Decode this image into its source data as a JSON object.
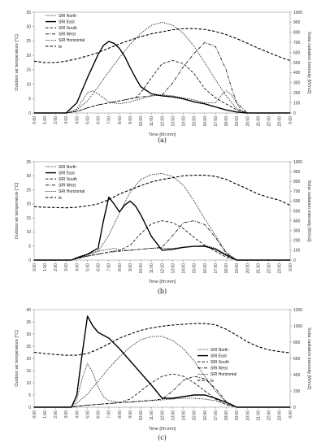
{
  "chart_data": [
    {
      "type": "line",
      "caption": "(a)",
      "xlabel": "Time [hh:mm]",
      "ylabel_left": "Outdoor air temperature  [°C]",
      "ylabel_right": "Solar radiation intensity [W/m2]",
      "ylim_left": [
        0,
        35
      ],
      "yticks_left": [
        0,
        5,
        10,
        15,
        20,
        25,
        30,
        35
      ],
      "ylim_right": [
        0,
        1000
      ],
      "yticks_right": [
        0,
        100,
        200,
        300,
        400,
        500,
        600,
        700,
        800,
        900,
        1000
      ],
      "x_ticks": [
        "0:00",
        "1:00",
        "2:00",
        "3:00",
        "4:00",
        "5:00",
        "6:00",
        "7:00",
        "8:00",
        "9:00",
        "10:00",
        "11:00",
        "12:00",
        "13:00",
        "14:00",
        "15:00",
        "16:00",
        "17:00",
        "18:00",
        "19:00",
        "20:00",
        "21:00",
        "22:00",
        "23:00",
        "0:00"
      ],
      "legend": [
        "SRI North",
        "SRI East",
        "SRI South",
        "SRI West",
        "SRI Horizontal",
        "te"
      ],
      "series": [
        {
          "name": "SRI North",
          "axis": "right",
          "style": "dotted",
          "x": [
            0,
            3,
            3.5,
            4,
            4.5,
            5,
            5.5,
            6,
            6.5,
            7,
            8,
            9,
            10,
            11,
            12,
            13,
            14,
            15,
            16,
            17,
            17.5,
            18,
            18.5,
            19,
            19.5,
            24
          ],
          "y": [
            0,
            0,
            10,
            40,
            120,
            200,
            220,
            190,
            150,
            110,
            90,
            110,
            140,
            170,
            180,
            170,
            150,
            130,
            100,
            100,
            170,
            220,
            180,
            100,
            0,
            0
          ]
        },
        {
          "name": "SRI East",
          "axis": "right",
          "style": "solid",
          "x": [
            0,
            3,
            4,
            5,
            6,
            6.5,
            7,
            7.5,
            8,
            8.5,
            9,
            9.5,
            10,
            11,
            12,
            13,
            14,
            15,
            16,
            17,
            18,
            19,
            20,
            24
          ],
          "y": [
            0,
            0,
            100,
            350,
            580,
            670,
            710,
            690,
            640,
            560,
            450,
            350,
            260,
            190,
            170,
            160,
            140,
            110,
            90,
            60,
            30,
            10,
            0,
            0
          ]
        },
        {
          "name": "SRI South",
          "axis": "right",
          "style": "dashed",
          "x": [
            0,
            3,
            4,
            5,
            6,
            7,
            8,
            9,
            9.5,
            10,
            11,
            12,
            13,
            14,
            15,
            16,
            17,
            18,
            19,
            20,
            24
          ],
          "y": [
            0,
            0,
            15,
            50,
            80,
            100,
            120,
            140,
            150,
            200,
            350,
            490,
            520,
            490,
            390,
            240,
            150,
            90,
            30,
            0,
            0
          ]
        },
        {
          "name": "SRI West",
          "axis": "right",
          "style": "dashdot",
          "x": [
            0,
            3,
            4,
            5,
            6,
            7,
            8,
            9,
            10,
            11,
            12,
            13,
            14,
            15,
            16,
            17,
            18,
            18.5,
            19,
            20,
            24
          ],
          "y": [
            0,
            0,
            15,
            50,
            80,
            100,
            120,
            140,
            160,
            170,
            180,
            300,
            460,
            590,
            700,
            660,
            430,
            250,
            100,
            0,
            0
          ]
        },
        {
          "name": "SRI Horizontal",
          "axis": "right",
          "style": "dotted",
          "x": [
            0,
            3,
            4,
            5,
            6,
            7,
            8,
            9,
            10,
            11,
            12,
            13,
            14,
            15,
            16,
            17,
            18,
            19,
            20,
            24
          ],
          "y": [
            0,
            0,
            30,
            120,
            260,
            410,
            550,
            680,
            790,
            870,
            900,
            870,
            790,
            660,
            500,
            330,
            170,
            40,
            0,
            0
          ]
        },
        {
          "name": "te",
          "axis": "left",
          "style": "dashed",
          "x": [
            0,
            1,
            2,
            3,
            4,
            5,
            6,
            7,
            8,
            9,
            10,
            11,
            12,
            13,
            14,
            15,
            16,
            17,
            18,
            19,
            20,
            21,
            22,
            23,
            24
          ],
          "y": [
            18,
            17.5,
            17.5,
            18,
            18.8,
            19.8,
            21,
            22.5,
            24,
            25.3,
            26.5,
            27.5,
            28.2,
            28.9,
            29.3,
            29.3,
            29,
            28.3,
            27.2,
            25.8,
            24.2,
            22.5,
            21,
            19.5,
            18.2
          ]
        }
      ]
    },
    {
      "type": "line",
      "caption": "(b)",
      "xlabel": "Time [hh:mm]",
      "ylabel_left": "Outdoor air temperature  [°C]",
      "ylabel_right": "Solar radiation intensity [W/m2]",
      "ylim_left": [
        0,
        35
      ],
      "yticks_left": [
        0,
        5,
        10,
        15,
        20,
        25,
        30,
        35
      ],
      "ylim_right": [
        0,
        1000
      ],
      "yticks_right": [
        0,
        100,
        200,
        300,
        400,
        500,
        600,
        700,
        800,
        900,
        1000
      ],
      "x_ticks": [
        "0:00",
        "1:00",
        "2:00",
        "3:00",
        "4:00",
        "5:00",
        "6:00",
        "7:00",
        "8:00",
        "9:00",
        "10:00",
        "11:00",
        "12:00",
        "13:00",
        "14:00",
        "15:00",
        "16:00",
        "17:00",
        "18:00",
        "19:00",
        "20:00",
        "21:00",
        "22:00",
        "23:00",
        "0:00"
      ],
      "legend": [
        "SRI North",
        "SRI East",
        "SRI South",
        "SRI West",
        "SRI Horizontal",
        "te"
      ],
      "series": [
        {
          "name": "SRI North",
          "axis": "right",
          "style": "dotted",
          "x": [
            0,
            3.5,
            4,
            5,
            6,
            7,
            7.5,
            8,
            9,
            10,
            11,
            12,
            13,
            14,
            15,
            16,
            17,
            18,
            19,
            24
          ],
          "y": [
            0,
            0,
            20,
            50,
            90,
            110,
            120,
            100,
            100,
            110,
            120,
            120,
            120,
            130,
            140,
            150,
            120,
            60,
            0,
            0
          ]
        },
        {
          "name": "SRI East",
          "axis": "right",
          "style": "solid",
          "x": [
            0,
            3.5,
            4,
            5,
            6,
            6.5,
            7,
            7.5,
            8,
            8.5,
            9,
            9.5,
            10,
            11,
            12,
            13,
            14,
            15,
            16,
            17,
            18,
            19,
            24
          ],
          "y": [
            0,
            0,
            20,
            60,
            120,
            400,
            640,
            570,
            490,
            560,
            600,
            550,
            460,
            240,
            100,
            110,
            130,
            140,
            140,
            110,
            50,
            0,
            0
          ]
        },
        {
          "name": "SRI South",
          "axis": "right",
          "style": "dashed",
          "x": [
            0,
            3.5,
            4,
            5,
            6,
            7,
            8,
            9,
            10,
            11,
            12,
            13,
            14,
            15,
            16,
            17,
            18,
            19,
            24
          ],
          "y": [
            0,
            0,
            15,
            40,
            60,
            80,
            100,
            150,
            270,
            370,
            400,
            380,
            320,
            230,
            150,
            90,
            30,
            0,
            0
          ]
        },
        {
          "name": "SRI West",
          "axis": "right",
          "style": "dashdot",
          "x": [
            0,
            3.5,
            4,
            5,
            6,
            7,
            8,
            9,
            10,
            11,
            12,
            13,
            14,
            15,
            16,
            17,
            18,
            19,
            24
          ],
          "y": [
            0,
            0,
            15,
            40,
            60,
            80,
            90,
            100,
            110,
            120,
            130,
            250,
            380,
            400,
            360,
            230,
            70,
            0,
            0
          ]
        },
        {
          "name": "SRI Horizontal",
          "axis": "right",
          "style": "dotted",
          "x": [
            0,
            3.5,
            4,
            5,
            6,
            7,
            8,
            9,
            10,
            11,
            12,
            13,
            14,
            15,
            16,
            17,
            18,
            19,
            24
          ],
          "y": [
            0,
            0,
            30,
            60,
            90,
            250,
            480,
            690,
            820,
            870,
            880,
            850,
            760,
            600,
            420,
            250,
            80,
            0,
            0
          ]
        },
        {
          "name": "te",
          "axis": "left",
          "style": "dashed",
          "x": [
            0,
            1,
            2,
            3,
            4,
            5,
            6,
            7,
            8,
            9,
            10,
            11,
            12,
            13,
            14,
            15,
            16,
            17,
            18,
            19,
            20,
            21,
            22,
            23,
            24
          ],
          "y": [
            19,
            18.8,
            18.7,
            18.6,
            18.8,
            19.3,
            20,
            21.5,
            23.5,
            25,
            26.5,
            27.8,
            28.7,
            29.3,
            30,
            30.2,
            30.2,
            29.8,
            28.7,
            27,
            25.3,
            23.5,
            22.3,
            21.3,
            19.5
          ]
        }
      ]
    },
    {
      "type": "line",
      "caption": "(c)",
      "xlabel": "Time [hh:mm]",
      "ylabel_left": "Outdoor air temperature  [°C]",
      "ylabel_right": "Solar radiation intensity [W/m2]",
      "ylim_left": [
        0,
        40
      ],
      "yticks_left": [
        0,
        5,
        10,
        15,
        20,
        25,
        30,
        35,
        40
      ],
      "ylim_right": [
        0,
        1200
      ],
      "yticks_right": [
        0,
        200,
        400,
        600,
        800,
        1000,
        1200
      ],
      "x_ticks": [
        "0:00",
        "1:00",
        "2:00",
        "3:00",
        "4:00",
        "5:00",
        "6:00",
        "7:00",
        "8:00",
        "9:00",
        "10:00",
        "11:00",
        "12:00",
        "13:00",
        "14:00",
        "15:00",
        "16:00",
        "17:00",
        "18:00",
        "19:00",
        "20:00",
        "21:00",
        "22:00",
        "23:00",
        "0:00"
      ],
      "legend": [
        "SRI North",
        "SRI East",
        "SRI South",
        "SRI West",
        "SRI Horizontal",
        "te"
      ],
      "series": [
        {
          "name": "SRI North",
          "axis": "right",
          "style": "dotted",
          "x": [
            0,
            3.5,
            4,
            4.5,
            5,
            5.5,
            6,
            6.5,
            7,
            8,
            9,
            10,
            11,
            12,
            13,
            14,
            15,
            16,
            17,
            18,
            19,
            24
          ],
          "y": [
            0,
            0,
            100,
            350,
            540,
            420,
            250,
            130,
            80,
            60,
            60,
            70,
            80,
            90,
            100,
            110,
            110,
            100,
            80,
            40,
            0,
            0
          ]
        },
        {
          "name": "SRI East",
          "axis": "right",
          "style": "solid",
          "x": [
            0,
            3.5,
            4,
            4.5,
            5,
            5.5,
            6,
            7,
            8,
            9,
            10,
            11,
            12,
            13,
            14,
            15,
            16,
            17,
            18,
            19,
            24
          ],
          "y": [
            0,
            0,
            150,
            650,
            1120,
            1000,
            920,
            850,
            720,
            570,
            420,
            270,
            110,
            110,
            130,
            150,
            150,
            110,
            60,
            0,
            0
          ]
        },
        {
          "name": "SRI South",
          "axis": "right",
          "style": "dashed",
          "x": [
            0,
            3.5,
            4,
            5,
            6,
            7,
            8,
            9,
            10,
            11,
            12,
            13,
            14,
            15,
            16,
            17,
            18,
            19,
            24
          ],
          "y": [
            0,
            0,
            10,
            25,
            35,
            45,
            55,
            100,
            200,
            300,
            380,
            410,
            380,
            300,
            200,
            100,
            30,
            0,
            0
          ]
        },
        {
          "name": "SRI West",
          "axis": "right",
          "style": "dashdot",
          "x": [
            0,
            3.5,
            4,
            5,
            6,
            7,
            8,
            9,
            10,
            11,
            12,
            13,
            14,
            15,
            16,
            17,
            18,
            19,
            24
          ],
          "y": [
            0,
            0,
            10,
            25,
            35,
            45,
            55,
            65,
            75,
            85,
            100,
            200,
            330,
            380,
            350,
            230,
            70,
            0,
            0
          ]
        },
        {
          "name": "SRI Horizontal",
          "axis": "right",
          "style": "dotted",
          "x": [
            0,
            3.5,
            4,
            5,
            6,
            7,
            8,
            9,
            10,
            11,
            12,
            13,
            14,
            15,
            16,
            17,
            18,
            19,
            24
          ],
          "y": [
            0,
            0,
            50,
            160,
            320,
            480,
            620,
            740,
            830,
            870,
            870,
            820,
            720,
            570,
            380,
            200,
            60,
            0,
            0
          ]
        },
        {
          "name": "te",
          "axis": "left",
          "style": "dashed",
          "x": [
            0,
            1,
            2,
            3,
            4,
            5,
            6,
            7,
            8,
            9,
            10,
            11,
            12,
            13,
            14,
            15,
            16,
            17,
            18,
            19,
            20,
            21,
            22,
            23,
            24
          ],
          "y": [
            22.5,
            22,
            21.6,
            21.3,
            21.3,
            22,
            23.8,
            26,
            28.3,
            30,
            31.5,
            32.5,
            33.2,
            33.7,
            34,
            34.3,
            34.3,
            33.8,
            32,
            29.5,
            26.8,
            24.8,
            23.5,
            22.8,
            22.3
          ]
        }
      ]
    }
  ]
}
